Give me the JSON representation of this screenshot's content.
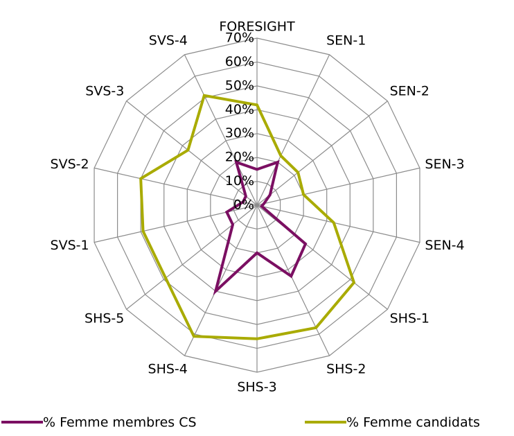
{
  "chart_data": {
    "type": "radar",
    "categories": [
      "FORESIGHT",
      "SEN-1",
      "SEN-2",
      "SEN-3",
      "SEN-4",
      "SHS-1",
      "SHS-2",
      "SHS-3",
      "SHS-4",
      "SHS-5",
      "SVS-1",
      "SVS-2",
      "SVS-3",
      "SVS-4"
    ],
    "series": [
      {
        "name": "% Femme membres CS",
        "color": "#7b0f62",
        "values": [
          15,
          20,
          7,
          3,
          2,
          26,
          33,
          20,
          40,
          13,
          13,
          6,
          6,
          20
        ]
      },
      {
        "name": "% Femme candidats",
        "color": "#a9ab00",
        "values": [
          42,
          23,
          22,
          20,
          33,
          52,
          57,
          56,
          61,
          49,
          49,
          50,
          37,
          51
        ]
      }
    ],
    "ylim": [
      0,
      70
    ],
    "yticks": [
      {
        "value": 0,
        "label": "0%"
      },
      {
        "value": 10,
        "label": "10%"
      },
      {
        "value": 20,
        "label": "20%"
      },
      {
        "value": 30,
        "label": "30%"
      },
      {
        "value": 40,
        "label": "40%"
      },
      {
        "value": 50,
        "label": "50%"
      },
      {
        "value": 60,
        "label": "60%"
      },
      {
        "value": 70,
        "label": "70%"
      }
    ],
    "grid": true,
    "legend": "bottom"
  }
}
